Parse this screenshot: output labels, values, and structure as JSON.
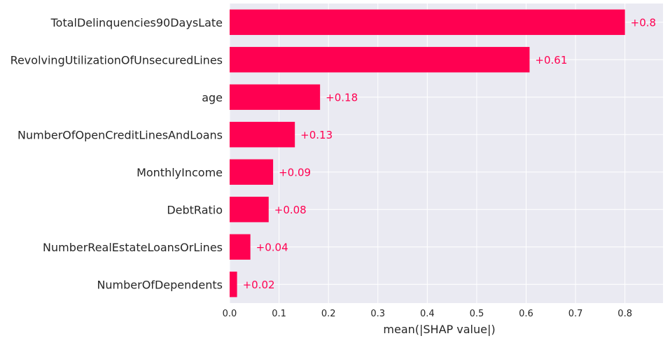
{
  "chart_data": {
    "type": "bar",
    "orientation": "horizontal",
    "categories": [
      "TotalDelinquencies90DaysLate",
      "RevolvingUtilizationOfUnsecuredLines",
      "age",
      "NumberOfOpenCreditLinesAndLoans",
      "MonthlyIncome",
      "DebtRatio",
      "NumberRealEstateLoansOrLines",
      "NumberOfDependents"
    ],
    "values": [
      0.8,
      0.607,
      0.183,
      0.132,
      0.088,
      0.079,
      0.042,
      0.015
    ],
    "data_labels": [
      "+0.8",
      "+0.61",
      "+0.18",
      "+0.13",
      "+0.09",
      "+0.08",
      "+0.04",
      "+0.02"
    ],
    "xlabel": "mean(|SHAP value|)",
    "ylabel": "",
    "title": "",
    "xlim": [
      0,
      0.877
    ],
    "xticks": [
      0.0,
      0.1,
      0.2,
      0.3,
      0.4,
      0.5,
      0.6,
      0.7,
      0.8
    ],
    "xtick_labels": [
      "0.0",
      "0.1",
      "0.2",
      "0.3",
      "0.4",
      "0.5",
      "0.6",
      "0.7",
      "0.8"
    ],
    "grid": true,
    "colors": {
      "bar": "#ff0051",
      "label": "#ff0051",
      "background": "#eaeaf2",
      "grid": "#ffffff"
    }
  }
}
